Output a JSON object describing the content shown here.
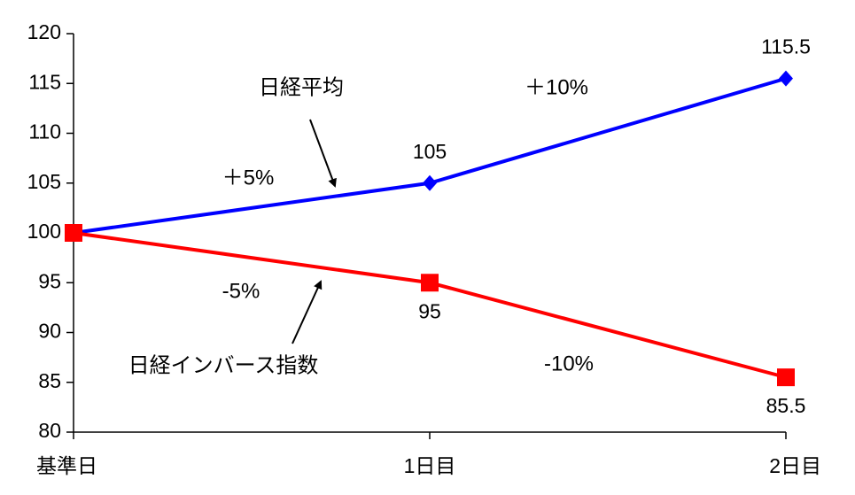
{
  "chart_data": {
    "type": "line",
    "categories": [
      "基準日",
      "1日目",
      "2日目"
    ],
    "series": [
      {
        "name": "日経平均",
        "color": "#0000ff",
        "marker": "diamond",
        "label_position": "above",
        "show_labels": [
          false,
          true,
          true
        ],
        "values": [
          100,
          105,
          115.5
        ]
      },
      {
        "name": "日経インバース指数",
        "color": "#ff0000",
        "marker": "square",
        "label_position": "below",
        "show_labels": [
          false,
          true,
          true
        ],
        "values": [
          100,
          95,
          85.5
        ]
      }
    ],
    "annotations": [
      "日経平均",
      "＋5%",
      "＋10%",
      "-5%",
      "-10%",
      "日経インバース指数"
    ],
    "ylim": [
      80,
      120
    ],
    "yticks": [
      80,
      85,
      90,
      95,
      100,
      105,
      110,
      115,
      120
    ],
    "grid": false
  }
}
